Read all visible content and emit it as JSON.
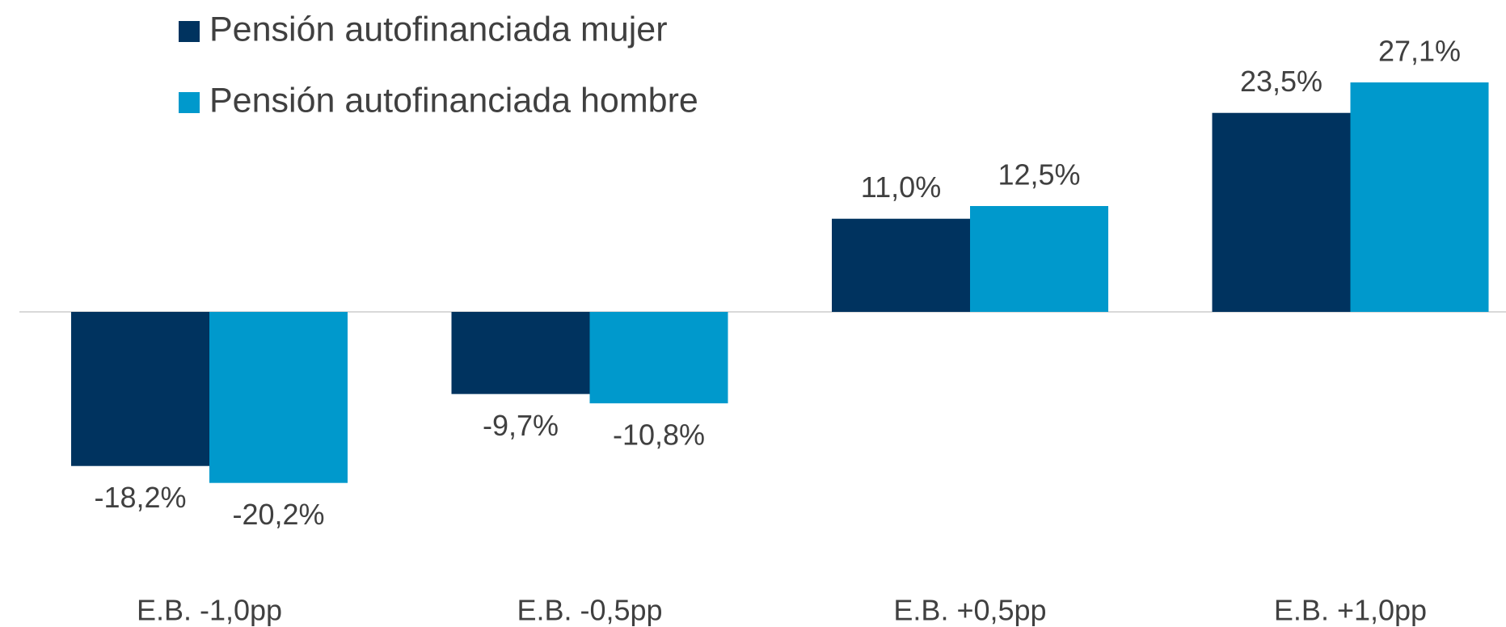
{
  "chart_data": {
    "type": "bar",
    "categories": [
      "E.B. -1,0pp",
      "E.B. -0,5pp",
      "E.B. +0,5pp",
      "E.B. +1,0pp"
    ],
    "series": [
      {
        "name": "Pensión autofinanciada mujer",
        "color": "#00335f",
        "values": [
          -18.2,
          -9.7,
          11.0,
          23.5
        ],
        "value_labels": [
          "-18,2%",
          "-9,7%",
          "11,0%",
          "23,5%"
        ]
      },
      {
        "name": "Pensión autofinanciada hombre",
        "color": "#0099cc",
        "values": [
          -20.2,
          -10.8,
          12.5,
          27.1
        ],
        "value_labels": [
          "-20,2%",
          "-10,8%",
          "12,5%",
          "27,1%"
        ]
      }
    ],
    "legend": "top-left"
  }
}
